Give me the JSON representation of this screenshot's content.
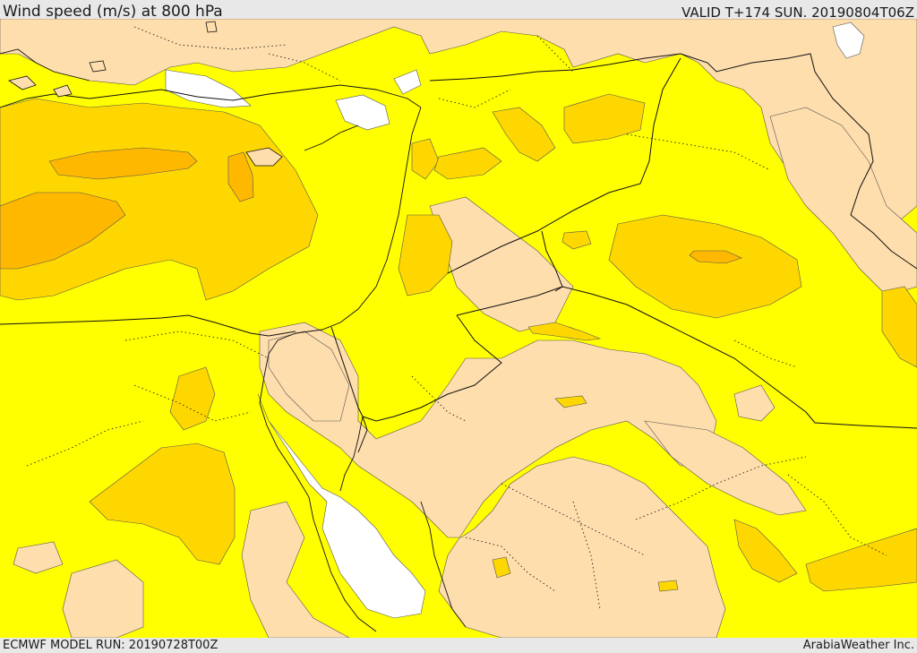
{
  "header": {
    "title": "Wind speed (m/s) at 800 hPa",
    "valid_time": "VALID T+174 SUN. 20190804T06Z"
  },
  "footer": {
    "model_run": "ECMWF MODEL RUN: 20190728T00Z",
    "credit": "ArabiaWeather Inc."
  },
  "map": {
    "variable": "wind speed",
    "pressure_level_hpa": 800,
    "units": "m/s",
    "colors": {
      "very_low": "#ffffff",
      "low": "#ffdead",
      "moderate": "#ffff00",
      "high": "#ffd700",
      "very_high": "#ffb800",
      "border_line": "#000000",
      "contour_line": "#333333"
    }
  }
}
